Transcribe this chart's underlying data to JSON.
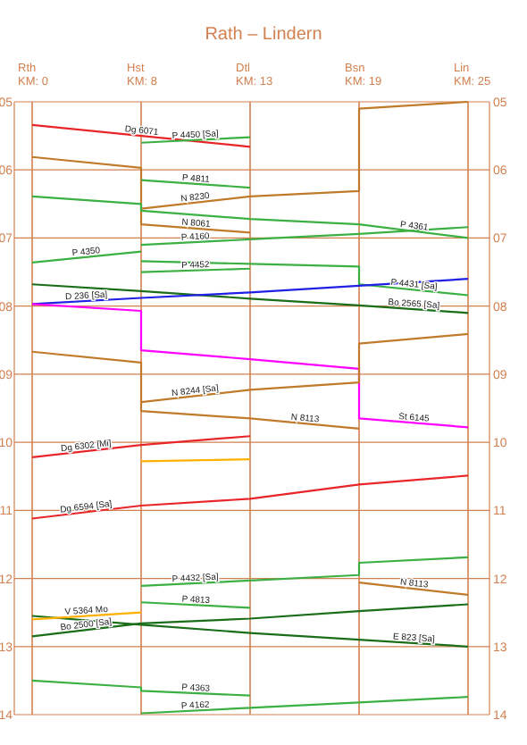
{
  "chart_data": {
    "type": "line",
    "title": "Rath – Lindern",
    "categories": [
      "Rth KM: 0",
      "Hst KM: 8",
      "Dtl KM: 13",
      "Bsn KM: 19",
      "Lin KM: 25"
    ],
    "ylim": [
      14,
      5
    ],
    "yticks": [
      {
        "value": 5,
        "label": "05"
      },
      {
        "value": 6,
        "label": "06"
      },
      {
        "value": 7,
        "label": "07"
      },
      {
        "value": 8,
        "label": "08"
      },
      {
        "value": 9,
        "label": "09"
      },
      {
        "value": 10,
        "label": "10"
      },
      {
        "value": 11,
        "label": "11"
      },
      {
        "value": 12,
        "label": "12"
      },
      {
        "value": 13,
        "label": "13"
      },
      {
        "value": 14,
        "label": "14"
      }
    ],
    "y2lim": [
      14,
      5
    ],
    "y2ticks": [
      {
        "value": 5,
        "label": "05"
      },
      {
        "value": 6,
        "label": "06"
      },
      {
        "value": 7,
        "label": "07"
      },
      {
        "value": 8,
        "label": "08"
      },
      {
        "value": 9,
        "label": "09"
      },
      {
        "value": 10,
        "label": "10"
      },
      {
        "value": 11,
        "label": "11"
      },
      {
        "value": 12,
        "label": "12"
      },
      {
        "value": 13,
        "label": "13"
      },
      {
        "value": 14,
        "label": "14"
      }
    ],
    "grid": true,
    "marker": "none",
    "line_style": "solid",
    "series": [
      {
        "name": "Dg 6071",
        "color": "#e8262a",
        "x": [
          "Rth KM: 0",
          "Dtl KM: 13"
        ],
        "values": [
          5.34,
          5.66
        ]
      },
      {
        "name": "P 4450 [Sa]",
        "color": "#3cb043",
        "x": [
          "Dtl KM: 13",
          "Hst KM: 8"
        ],
        "values": [
          5.52,
          5.6
        ]
      },
      {
        "name": "N 8061",
        "color": "#c07a2a",
        "x": [
          "Rth KM: 0",
          "Hst KM: 8",
          "Hst KM: 8",
          "Dtl KM: 13"
        ],
        "values": [
          5.81,
          5.97,
          6.8,
          6.92
        ]
      },
      {
        "name": "N 8230",
        "color": "#c07a2a",
        "x": [
          "Lin KM: 25",
          "Bsn KM: 19",
          "Bsn KM: 19",
          "Dtl KM: 13",
          "Hst KM: 8"
        ],
        "values": [
          5.0,
          5.1,
          6.31,
          6.39,
          6.57
        ]
      },
      {
        "name": "P 4811",
        "color": "#3cb043",
        "x": [
          "Hst KM: 8",
          "Dtl KM: 13"
        ],
        "values": [
          6.15,
          6.26
        ]
      },
      {
        "name": "P 4361",
        "color": "#3cb043",
        "x": [
          "Rth KM: 0",
          "Hst KM: 8",
          "Hst KM: 8",
          "Dtl KM: 13",
          "Bsn KM: 19",
          "Lin KM: 25"
        ],
        "values": [
          6.39,
          6.5,
          6.6,
          6.72,
          6.8,
          7.0
        ]
      },
      {
        "name": "P 4160",
        "color": "#3cb043",
        "x": [
          "Lin KM: 25",
          "Bsn KM: 19",
          "Dtl KM: 13",
          "Hst KM: 8"
        ],
        "values": [
          6.84,
          6.94,
          7.02,
          7.1
        ]
      },
      {
        "name": "P 4350",
        "color": "#3cb043",
        "x": [
          "Hst KM: 8",
          "Rth KM: 0"
        ],
        "values": [
          7.2,
          7.36
        ]
      },
      {
        "name": "P 4431 [Sa]",
        "color": "#3cb043",
        "x": [
          "Hst KM: 8",
          "Dtl KM: 13",
          "Bsn KM: 19",
          "Bsn KM: 19",
          "Lin KM: 25"
        ],
        "values": [
          7.34,
          7.38,
          7.42,
          7.68,
          7.84
        ]
      },
      {
        "name": "P 4452",
        "color": "#3cb043",
        "x": [
          "Dtl KM: 13",
          "Hst KM: 8"
        ],
        "values": [
          7.45,
          7.5
        ]
      },
      {
        "name": "Bo 2565 [Sa]",
        "color": "#1a6e1a",
        "x": [
          "Rth KM: 0",
          "Hst KM: 8",
          "Dtl KM: 13",
          "Bsn KM: 19",
          "Lin KM: 25"
        ],
        "values": [
          7.68,
          7.78,
          7.89,
          7.99,
          8.1
        ]
      },
      {
        "name": "D 236 [Sa]",
        "color": "#1f1fe6",
        "x": [
          "Lin KM: 25",
          "Bsn KM: 19",
          "Dtl KM: 13",
          "Hst KM: 8",
          "Rth KM: 0"
        ],
        "values": [
          7.6,
          7.7,
          7.8,
          7.88,
          7.97
        ]
      },
      {
        "name": "St 6145",
        "color": "#ff00ff",
        "x": [
          "Rth KM: 0",
          "Hst KM: 8",
          "Hst KM: 8",
          "Dtl KM: 13",
          "Bsn KM: 19",
          "Bsn KM: 19",
          "Lin KM: 25"
        ],
        "values": [
          7.97,
          8.07,
          8.65,
          8.78,
          8.92,
          9.65,
          9.78
        ]
      },
      {
        "name": "N 8113",
        "color": "#c07a2a",
        "x": [
          "Rth KM: 0",
          "Hst KM: 8",
          "Hst KM: 8",
          "Dtl KM: 13",
          "Bsn KM: 19"
        ],
        "values": [
          8.67,
          8.83,
          9.54,
          9.65,
          9.8
        ]
      },
      {
        "name": "N 8244 [Sa]",
        "color": "#c07a2a",
        "x": [
          "Lin KM: 25",
          "Bsn KM: 19",
          "Bsn KM: 19",
          "Dtl KM: 13",
          "Hst KM: 8"
        ],
        "values": [
          8.41,
          8.55,
          9.12,
          9.23,
          9.41
        ]
      },
      {
        "name": "Dg 6302 [Mi]",
        "color": "#e8262a",
        "x": [
          "Dtl KM: 13",
          "Hst KM: 8",
          "Rth KM: 0"
        ],
        "values": [
          9.91,
          10.04,
          10.22
        ]
      },
      {
        "color": "#ffb000",
        "x": [
          "Hst KM: 8",
          "Dtl KM: 13"
        ],
        "values": [
          10.28,
          10.25
        ]
      },
      {
        "name": "Dg 6594 [Sa]",
        "color": "#e8262a",
        "x": [
          "Lin KM: 25",
          "Bsn KM: 19",
          "Dtl KM: 13",
          "Hst KM: 8",
          "Rth KM: 0"
        ],
        "values": [
          10.49,
          10.62,
          10.83,
          10.93,
          11.12
        ]
      },
      {
        "name": "P 4432 [Sa]",
        "color": "#3cb043",
        "x": [
          "Lin KM: 25",
          "Bsn KM: 19",
          "Bsn KM: 19",
          "Dtl KM: 13",
          "Hst KM: 8"
        ],
        "values": [
          11.69,
          11.77,
          11.95,
          12.03,
          12.11
        ]
      },
      {
        "name": "P 4813",
        "color": "#3cb043",
        "x": [
          "Hst KM: 8",
          "Dtl KM: 13"
        ],
        "values": [
          12.35,
          12.43
        ]
      },
      {
        "name": "N 8113",
        "color": "#c07a2a",
        "x": [
          "Bsn KM: 19",
          "Lin KM: 25"
        ],
        "values": [
          12.06,
          12.24
        ]
      },
      {
        "name": "Bo 2500 [Sa]",
        "color": "#1a6e1a",
        "x": [
          "Lin KM: 25",
          "Bsn KM: 19",
          "Dtl KM: 13",
          "Hst KM: 8",
          "Rth KM: 0"
        ],
        "values": [
          12.38,
          12.48,
          12.59,
          12.66,
          12.85
        ]
      },
      {
        "name": "E 823 [Sa]",
        "color": "#1a6e1a",
        "x": [
          "Rth KM: 0",
          "Hst KM: 8",
          "Dtl KM: 13",
          "Bsn KM: 19",
          "Lin KM: 25"
        ],
        "values": [
          12.55,
          12.68,
          12.8,
          12.9,
          13.0
        ]
      },
      {
        "name": "V 5364 Mo",
        "color": "#ffb000",
        "x": [
          "Rth KM: 0",
          "Hst KM: 8"
        ],
        "values": [
          12.6,
          12.5
        ]
      },
      {
        "name": "P 4363",
        "color": "#3cb043",
        "x": [
          "Rth KM: 0",
          "Hst KM: 8",
          "Hst KM: 8",
          "Dtl KM: 13"
        ],
        "values": [
          13.5,
          13.6,
          13.65,
          13.72
        ]
      },
      {
        "name": "P 4162",
        "color": "#3cb043",
        "x": [
          "Lin KM: 25",
          "Bsn KM: 19",
          "Dtl KM: 13",
          "Hst KM: 8"
        ],
        "values": [
          13.74,
          13.82,
          13.9,
          13.98
        ]
      }
    ]
  }
}
